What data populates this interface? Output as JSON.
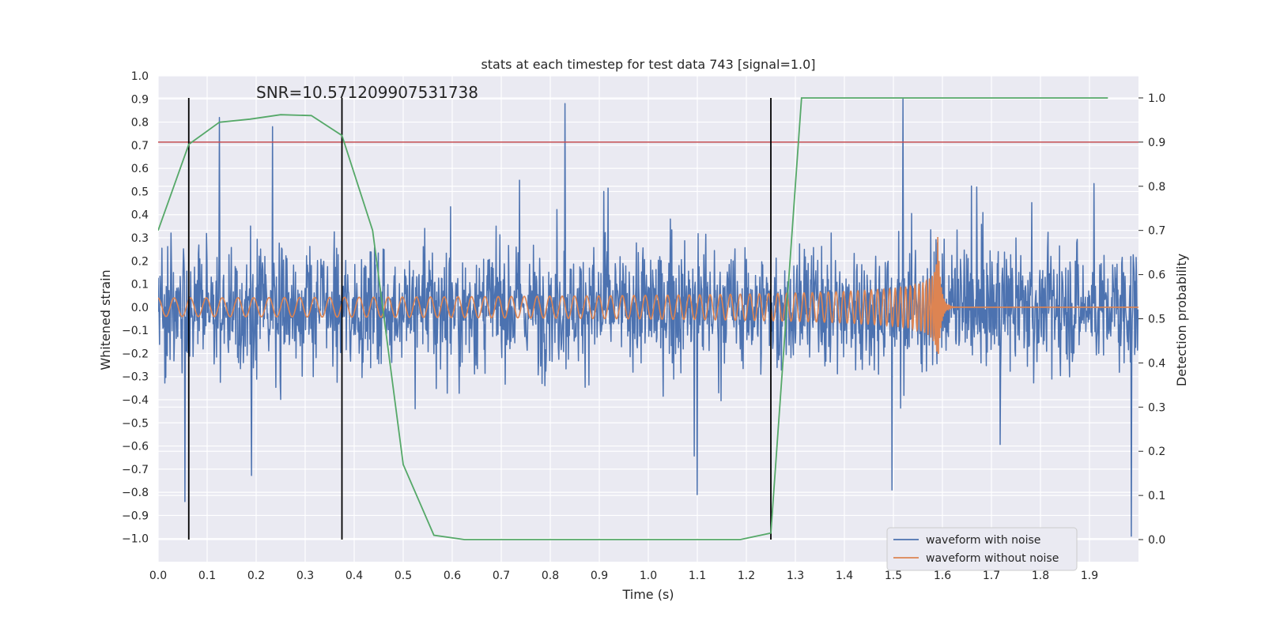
{
  "chart_data": {
    "type": "line",
    "title": "stats at each timestep for test data 743 [signal=1.0]",
    "xlabel": "Time (s)",
    "ylabel": "Whitened strain",
    "ylabel_right": "Detection probability",
    "xlim": [
      0.0,
      2.0
    ],
    "ylim": [
      -1.1,
      1.0
    ],
    "ylim_right": [
      -0.05,
      1.05
    ],
    "xticks": [
      "0.0",
      "0.1",
      "0.2",
      "0.3",
      "0.4",
      "0.5",
      "0.6",
      "0.7",
      "0.8",
      "0.9",
      "1.0",
      "1.1",
      "1.2",
      "1.3",
      "1.4",
      "1.5",
      "1.6",
      "1.7",
      "1.8",
      "1.9"
    ],
    "yticks": [
      "1.0",
      "0.9",
      "0.8",
      "0.7",
      "0.6",
      "0.5",
      "0.4",
      "0.3",
      "0.2",
      "0.1",
      "0.0",
      "−0.1",
      "−0.2",
      "−0.3",
      "−0.4",
      "−0.5",
      "−0.6",
      "−0.7",
      "−0.8",
      "−0.9",
      "−1.0"
    ],
    "yticks_right": [
      "1.0",
      "0.9",
      "0.8",
      "0.7",
      "0.6",
      "0.5",
      "0.4",
      "0.3",
      "0.2",
      "0.1",
      "0.0"
    ],
    "grid": true,
    "legend_position": "bottom-right",
    "annotation": "SNR=10.571209907531738",
    "threshold": {
      "axis": "right",
      "value": 0.9,
      "color": "#c44e52"
    },
    "vertical_markers": [
      0.0625,
      0.375,
      1.25
    ],
    "series": [
      {
        "name": "waveform with noise",
        "color": "#4c72b0",
        "axis": "left",
        "kind": "noise",
        "sample_rate": 1024,
        "amplitude_range": [
          -0.85,
          0.85
        ],
        "notable_peaks": [
          {
            "x": 0.125,
            "y": 0.82
          },
          {
            "x": 0.233,
            "y": 0.78
          },
          {
            "x": 0.83,
            "y": 0.88
          },
          {
            "x": 1.52,
            "y": 0.9
          },
          {
            "x": 0.055,
            "y": -0.84
          },
          {
            "x": 1.1,
            "y": -0.81
          },
          {
            "x": 1.497,
            "y": -0.79
          },
          {
            "x": 1.985,
            "y": -0.99
          }
        ]
      },
      {
        "name": "waveform without noise",
        "color": "#dd8452",
        "axis": "left",
        "kind": "chirp",
        "merger_time": 1.59,
        "start_amplitude": 0.04,
        "peak_amplitude": 0.33,
        "start_frequency_hz": 30
      },
      {
        "name": "detection probability",
        "color": "#55a868",
        "axis": "right",
        "x": [
          0.0,
          0.0625,
          0.125,
          0.1875,
          0.25,
          0.3125,
          0.375,
          0.4375,
          0.5,
          0.5625,
          0.625,
          0.6875,
          0.75,
          0.8125,
          0.875,
          0.9375,
          1.0,
          1.0625,
          1.125,
          1.1875,
          1.25,
          1.3125,
          1.375,
          1.4375,
          1.5,
          1.5625,
          1.625,
          1.6875,
          1.75,
          1.8125,
          1.875,
          1.9375
        ],
        "y": [
          0.7,
          0.895,
          0.945,
          0.952,
          0.962,
          0.96,
          0.915,
          0.7,
          0.17,
          0.01,
          0.0,
          0.0,
          0.0,
          0.0,
          0.0,
          0.0,
          0.0,
          0.0,
          0.0,
          0.0,
          0.015,
          1.0,
          1.0,
          1.0,
          1.0,
          1.0,
          1.0,
          1.0,
          1.0,
          1.0,
          1.0,
          1.0
        ]
      }
    ]
  }
}
